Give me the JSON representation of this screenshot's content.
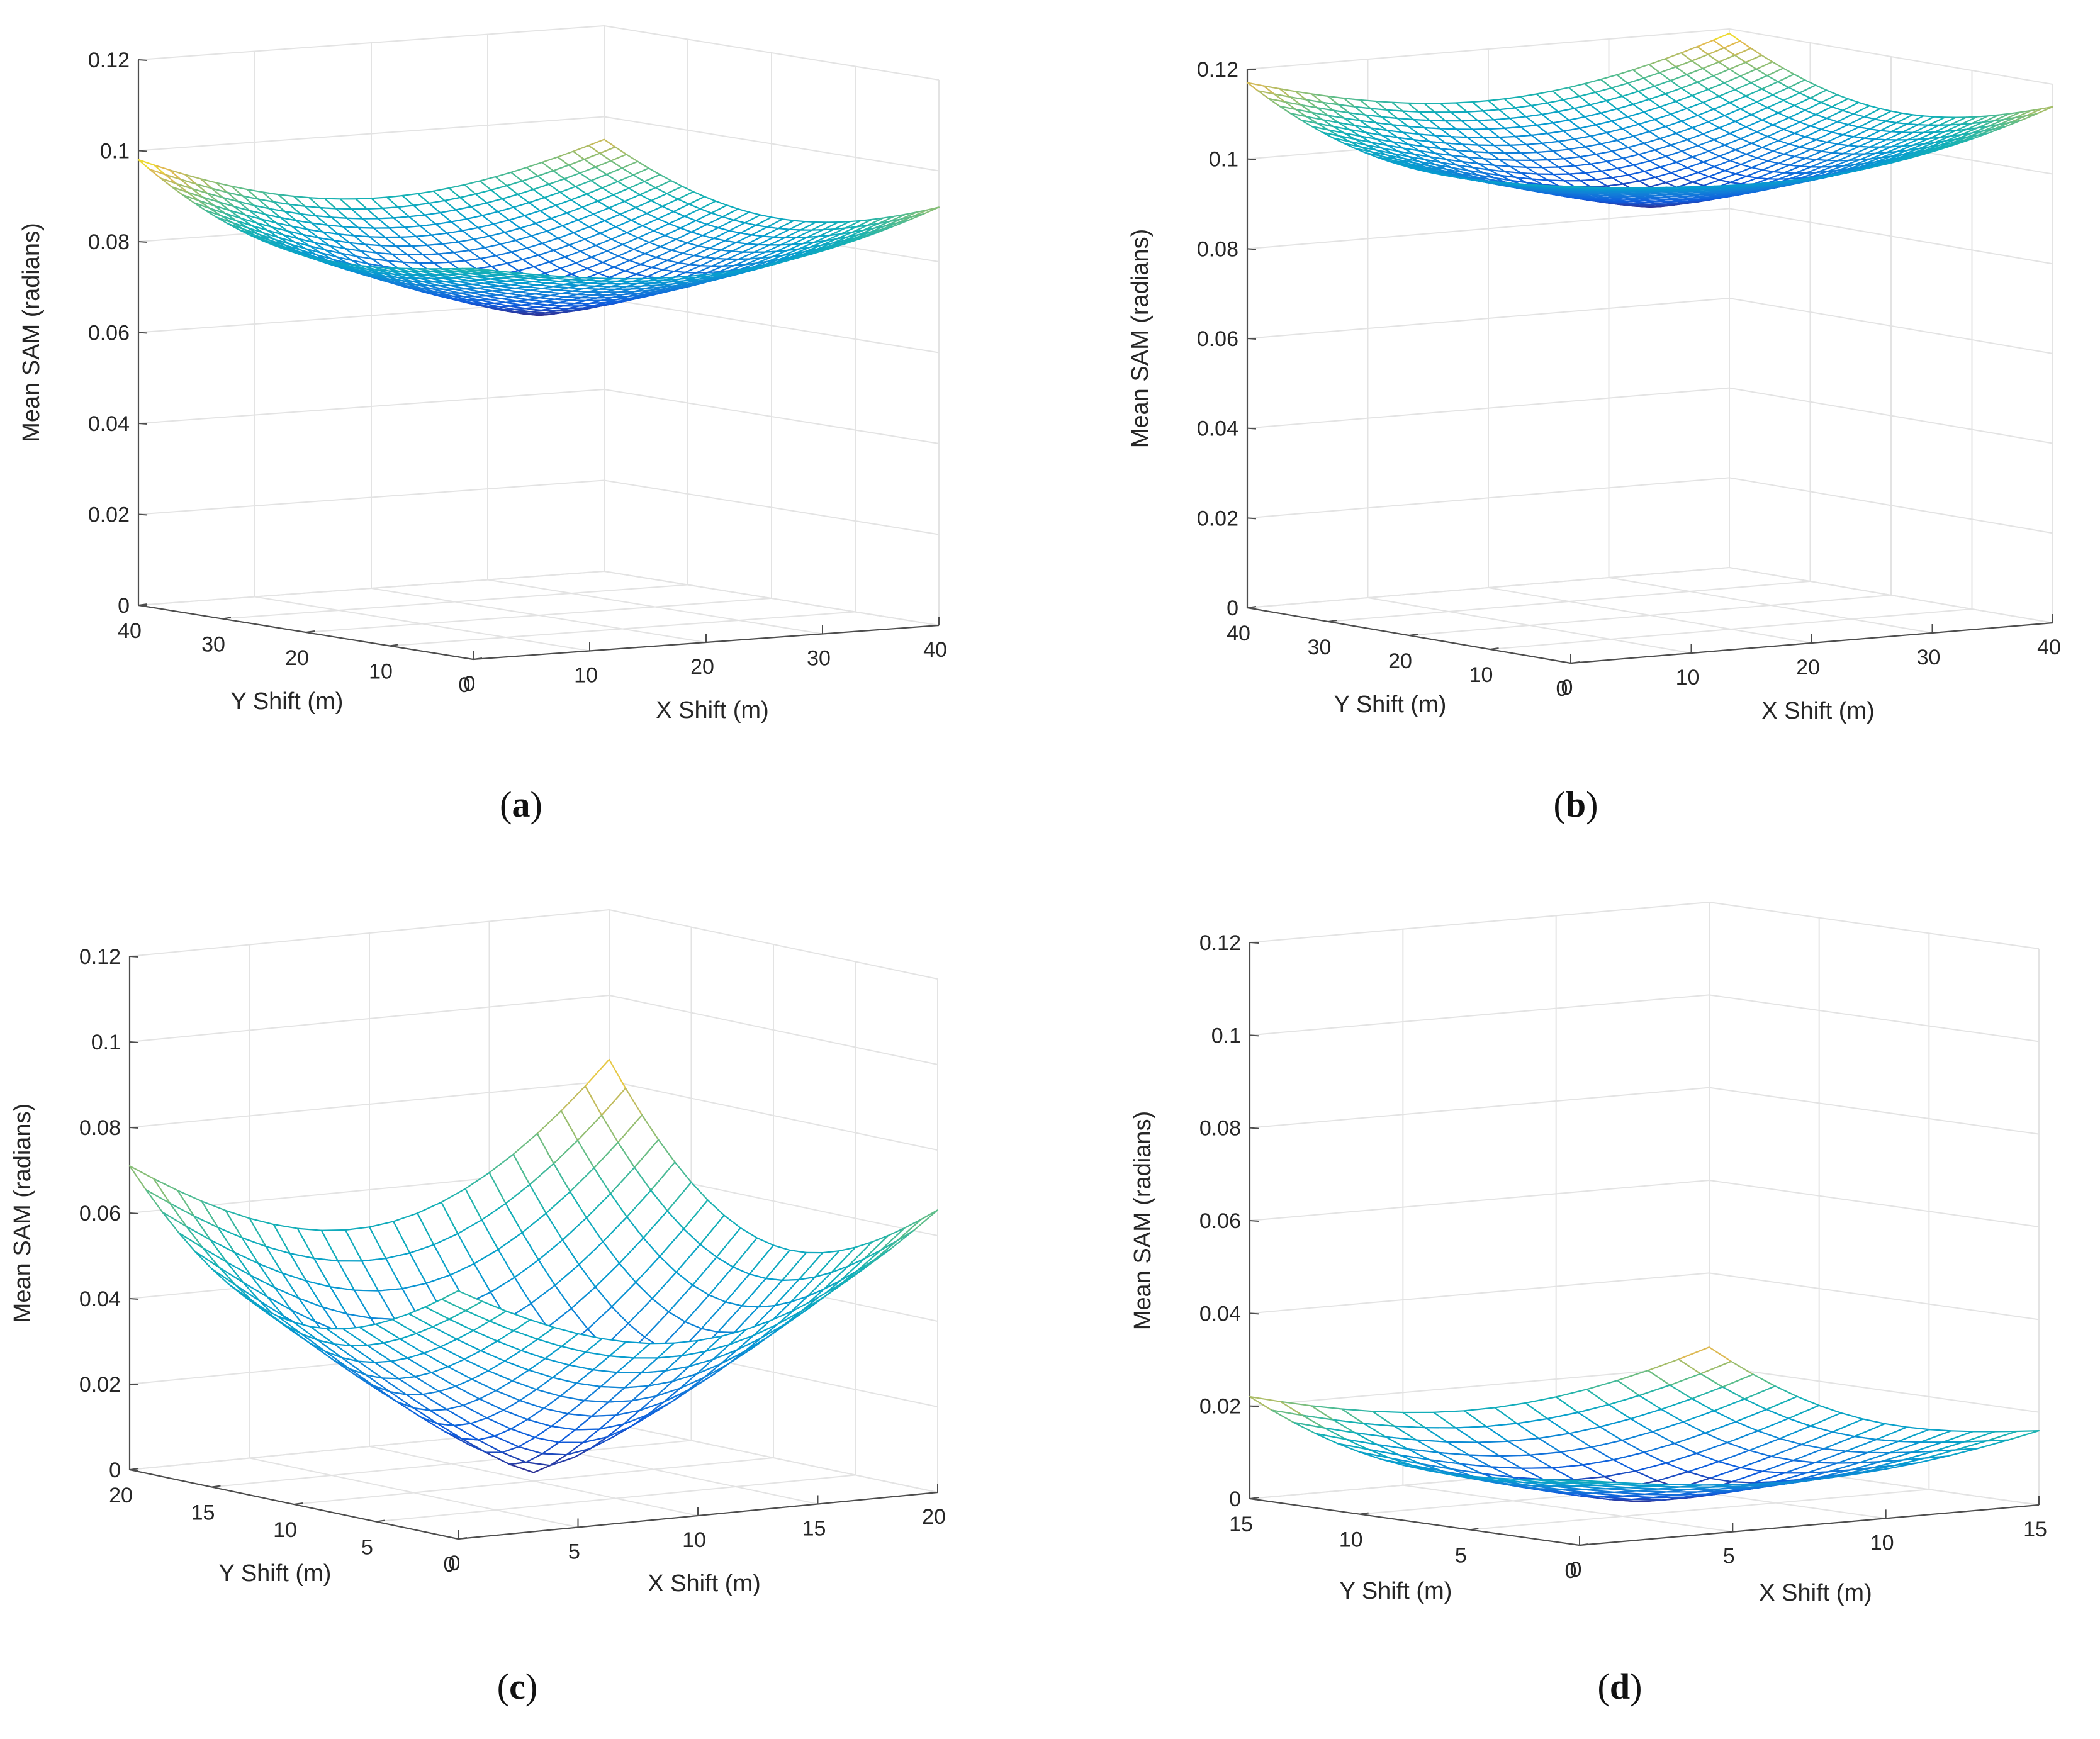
{
  "chart_data": [
    {
      "panel": "a",
      "type": "surface",
      "xlabel": "X Shift (m)",
      "ylabel": "Y Shift (m)",
      "zlabel": "Mean SAM (radians)",
      "xlim": [
        0,
        40
      ],
      "ylim": [
        0,
        40
      ],
      "zlim": [
        0,
        0.12
      ],
      "x_ticks": [
        "0",
        "10",
        "20",
        "30",
        "40"
      ],
      "y_ticks": [
        "0",
        "10",
        "20",
        "30",
        "40"
      ],
      "z_ticks": [
        "0",
        "0.02",
        "0.04",
        "0.06",
        "0.08",
        "0.1",
        "0.12"
      ],
      "grid_n": 30,
      "z_min": 0.066,
      "z_corners": {
        "x0y0": 0.086,
        "xmaxy0": 0.092,
        "x0ymax": 0.098,
        "xmaxymax": 0.095
      },
      "min_at": [
        20,
        20
      ]
    },
    {
      "panel": "b",
      "type": "surface",
      "xlabel": "X Shift (m)",
      "ylabel": "Y Shift (m)",
      "zlabel": "Mean SAM (radians)",
      "xlim": [
        0,
        40
      ],
      "ylim": [
        0,
        40
      ],
      "zlim": [
        0,
        0.12
      ],
      "x_ticks": [
        "0",
        "10",
        "20",
        "30",
        "40"
      ],
      "y_ticks": [
        "0",
        "10",
        "20",
        "30",
        "40"
      ],
      "z_ticks": [
        "0",
        "0.02",
        "0.04",
        "0.06",
        "0.08",
        "0.1",
        "0.12"
      ],
      "grid_n": 30,
      "z_min": 0.091,
      "z_corners": {
        "x0y0": 0.106,
        "xmaxy0": 0.115,
        "x0ymax": 0.117,
        "xmaxymax": 0.119
      },
      "min_at": [
        20,
        20
      ]
    },
    {
      "panel": "c",
      "type": "surface",
      "xlabel": "X Shift (m)",
      "ylabel": "Y Shift (m)",
      "zlabel": "Mean SAM (radians)",
      "xlim": [
        0,
        20
      ],
      "ylim": [
        0,
        20
      ],
      "zlim": [
        0,
        0.12
      ],
      "x_ticks": [
        "0",
        "5",
        "10",
        "15",
        "20"
      ],
      "y_ticks": [
        "0",
        "5",
        "10",
        "15",
        "20"
      ],
      "z_ticks": [
        "0",
        "0.02",
        "0.04",
        "0.06",
        "0.08",
        "0.1",
        "0.12"
      ],
      "grid_n": 20,
      "z_min": 0.002,
      "z_corners": {
        "x0y0": 0.058,
        "xmaxy0": 0.066,
        "x0ymax": 0.071,
        "xmaxymax": 0.085
      },
      "min_at": [
        10,
        10
      ]
    },
    {
      "panel": "d",
      "type": "surface",
      "xlabel": "X Shift (m)",
      "ylabel": "Y Shift (m)",
      "zlabel": "Mean SAM (radians)",
      "xlim": [
        0,
        15
      ],
      "ylim": [
        0,
        15
      ],
      "zlim": [
        0,
        0.12
      ],
      "x_ticks": [
        "0",
        "5",
        "10",
        "15"
      ],
      "y_ticks": [
        "0",
        "5",
        "10",
        "15"
      ],
      "z_ticks": [
        "0",
        "0.02",
        "0.04",
        "0.06",
        "0.08",
        "0.1",
        "0.12"
      ],
      "grid_n": 15,
      "z_min": 0.0,
      "z_corners": {
        "x0y0": 0.014,
        "xmaxy0": 0.016,
        "x0ymax": 0.022,
        "xmaxymax": 0.024
      },
      "min_at": [
        7.5,
        7.5
      ]
    }
  ],
  "captions": [
    "(a)",
    "(b)",
    "(c)",
    "(d)"
  ]
}
